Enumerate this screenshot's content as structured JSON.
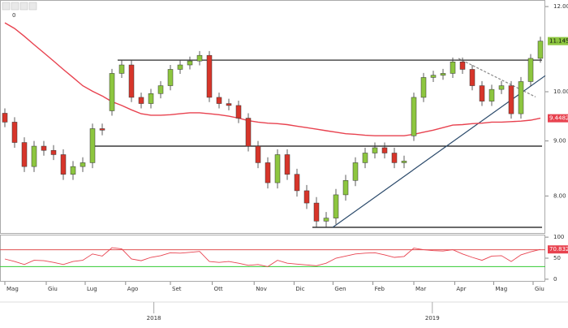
{
  "toolbar": {
    "label": "0"
  },
  "chart_data": [
    {
      "type": "candlestick",
      "open": [
        9.55,
        9.37,
        8.97,
        8.52,
        8.9,
        8.82,
        8.74,
        8.38,
        8.52,
        8.59,
        9.24,
        9.6,
        10.4,
        10.59,
        9.88,
        9.75,
        9.96,
        10.13,
        10.49,
        10.59,
        10.68,
        10.81,
        9.88,
        9.75,
        9.71,
        9.45,
        8.9,
        8.59,
        8.23,
        8.74,
        8.38,
        8.09,
        7.88,
        7.58,
        7.63,
        8.02,
        8.27,
        8.59,
        8.77,
        8.87,
        8.77,
        8.59,
        9.1,
        9.88,
        10.31,
        10.36,
        10.4,
        10.66,
        10.49,
        10.13,
        9.8,
        10.05,
        10.13,
        9.54,
        10.22,
        10.74
      ],
      "high": [
        9.65,
        9.47,
        9.07,
        9.0,
        9.0,
        8.92,
        8.84,
        8.62,
        8.69,
        9.34,
        9.34,
        10.5,
        10.69,
        10.69,
        9.98,
        10.06,
        10.23,
        10.59,
        10.69,
        10.78,
        10.91,
        10.91,
        9.98,
        9.85,
        9.81,
        9.55,
        9.0,
        8.69,
        8.84,
        8.84,
        8.48,
        8.19,
        7.98,
        7.73,
        8.12,
        8.37,
        8.69,
        8.87,
        8.97,
        8.97,
        8.87,
        8.72,
        9.98,
        10.41,
        10.46,
        10.5,
        10.76,
        10.76,
        10.59,
        10.23,
        10.15,
        10.23,
        10.23,
        10.32,
        10.84,
        11.25
      ],
      "low": [
        9.27,
        8.87,
        8.42,
        8.42,
        8.72,
        8.64,
        8.28,
        8.28,
        8.42,
        8.49,
        9.11,
        9.5,
        10.3,
        9.78,
        9.65,
        9.65,
        9.86,
        10.03,
        10.39,
        10.49,
        10.58,
        9.78,
        9.65,
        9.61,
        9.35,
        8.8,
        8.49,
        8.13,
        8.13,
        8.28,
        7.99,
        7.78,
        7.48,
        7.48,
        7.53,
        7.92,
        8.17,
        8.49,
        8.67,
        8.67,
        8.49,
        8.49,
        9.0,
        9.78,
        10.21,
        10.26,
        10.3,
        10.39,
        10.03,
        9.7,
        9.7,
        9.95,
        9.44,
        9.44,
        10.12,
        10.64
      ],
      "close": [
        9.37,
        8.97,
        8.52,
        8.9,
        8.82,
        8.74,
        8.38,
        8.52,
        8.59,
        9.24,
        9.21,
        10.4,
        10.59,
        9.88,
        9.75,
        9.96,
        10.13,
        10.49,
        10.59,
        10.68,
        10.81,
        9.88,
        9.75,
        9.71,
        9.45,
        8.9,
        8.59,
        8.23,
        8.74,
        8.38,
        8.09,
        7.88,
        7.58,
        7.63,
        8.02,
        8.27,
        8.59,
        8.77,
        8.87,
        8.77,
        8.59,
        8.62,
        9.88,
        10.31,
        10.36,
        10.4,
        10.66,
        10.49,
        10.13,
        9.8,
        10.05,
        10.13,
        9.54,
        10.22,
        10.74,
        11.145
      ],
      "colors": {
        "up": "#8dc63f",
        "down": "#d7352a"
      },
      "overlays": [
        {
          "type": "line",
          "color": "#e8424f",
          "values": [
            11.59,
            11.45,
            11.26,
            11.06,
            10.87,
            10.68,
            10.49,
            10.31,
            10.13,
            10.01,
            9.91,
            9.79,
            9.71,
            9.62,
            9.54,
            9.51,
            9.51,
            9.52,
            9.54,
            9.56,
            9.56,
            9.54,
            9.52,
            9.49,
            9.45,
            9.4,
            9.37,
            9.35,
            9.34,
            9.32,
            9.29,
            9.26,
            9.23,
            9.2,
            9.17,
            9.14,
            9.13,
            9.11,
            9.1,
            9.1,
            9.1,
            9.1,
            9.13,
            9.17,
            9.21,
            9.26,
            9.31,
            9.32,
            9.34,
            9.35,
            9.37,
            9.37,
            9.38,
            9.39,
            9.41,
            9.4482
          ]
        }
      ],
      "lines": [
        {
          "x": [
            11.58,
            55.17
          ],
          "y": [
            10.7,
            10.7
          ],
          "color": "#111111",
          "dashed": false
        },
        {
          "x": [
            9.08,
            55.17
          ],
          "y": [
            8.9,
            8.9
          ],
          "color": "#111111",
          "dashed": false
        },
        {
          "x": [
            31.58,
            55.17
          ],
          "y": [
            7.48,
            7.48
          ],
          "color": "#111111",
          "dashed": false
        },
        {
          "x": [
            33.67,
            55.5
          ],
          "y": [
            7.48,
            10.35
          ],
          "color": "#2b4a6b",
          "dashed": false
        },
        {
          "x": [
            46.58,
            54.5
          ],
          "y": [
            10.74,
            9.89
          ],
          "color": "#888888",
          "dashed": true
        }
      ],
      "log_scale": true,
      "ylim": [
        7.39,
        12.17
      ],
      "yticks": [
        {
          "value": 8,
          "label": "8.00"
        },
        {
          "value": 9,
          "label": "9.00"
        },
        {
          "value": 10,
          "label": "10.00"
        },
        {
          "value": 12,
          "label": "12.00"
        }
      ],
      "xlim": [
        -0.5,
        55.5
      ],
      "xticks": [
        {
          "value": 0,
          "label": "Mag"
        },
        {
          "value": 4.25,
          "label": "Giu"
        },
        {
          "value": 8.25,
          "label": "Lug"
        },
        {
          "value": 12.4,
          "label": "Ago"
        },
        {
          "value": 17,
          "label": "Set"
        },
        {
          "value": 21.3,
          "label": "Ott"
        },
        {
          "value": 25.6,
          "label": "Nov"
        },
        {
          "value": 29.7,
          "label": "Dic"
        },
        {
          "value": 33.7,
          "label": "Gen"
        },
        {
          "value": 37.8,
          "label": "Feb"
        },
        {
          "value": 42,
          "label": "Mar"
        },
        {
          "value": 46.2,
          "label": "Apr"
        },
        {
          "value": 50.2,
          "label": "Mag"
        },
        {
          "value": 54.25,
          "label": "Giu"
        }
      ],
      "year_ticks": [
        {
          "value": 15.3,
          "label": "2018"
        },
        {
          "value": 43.9,
          "label": "2019"
        }
      ]
    },
    {
      "type": "line",
      "color": "#e8424f",
      "values": [
        48,
        42,
        35,
        45,
        44,
        40,
        35,
        42,
        45,
        60,
        55,
        75,
        72,
        48,
        44,
        52,
        56,
        63,
        62,
        64,
        66,
        42,
        40,
        42,
        38,
        33,
        35,
        30,
        45,
        38,
        36,
        34,
        32,
        38,
        50,
        55,
        60,
        62,
        63,
        58,
        52,
        54,
        74,
        70,
        68,
        67,
        70,
        60,
        52,
        45,
        55,
        56,
        42,
        58,
        65,
        70.832
      ],
      "last_label": "70.8320",
      "hlines": [
        {
          "value": 70,
          "color": "#e05050"
        },
        {
          "value": 30,
          "color": "#33cc33"
        }
      ],
      "ylim": [
        -6,
        106
      ],
      "yticks": [
        100,
        50,
        0
      ],
      "xlim": [
        -0.5,
        55.5
      ]
    }
  ]
}
